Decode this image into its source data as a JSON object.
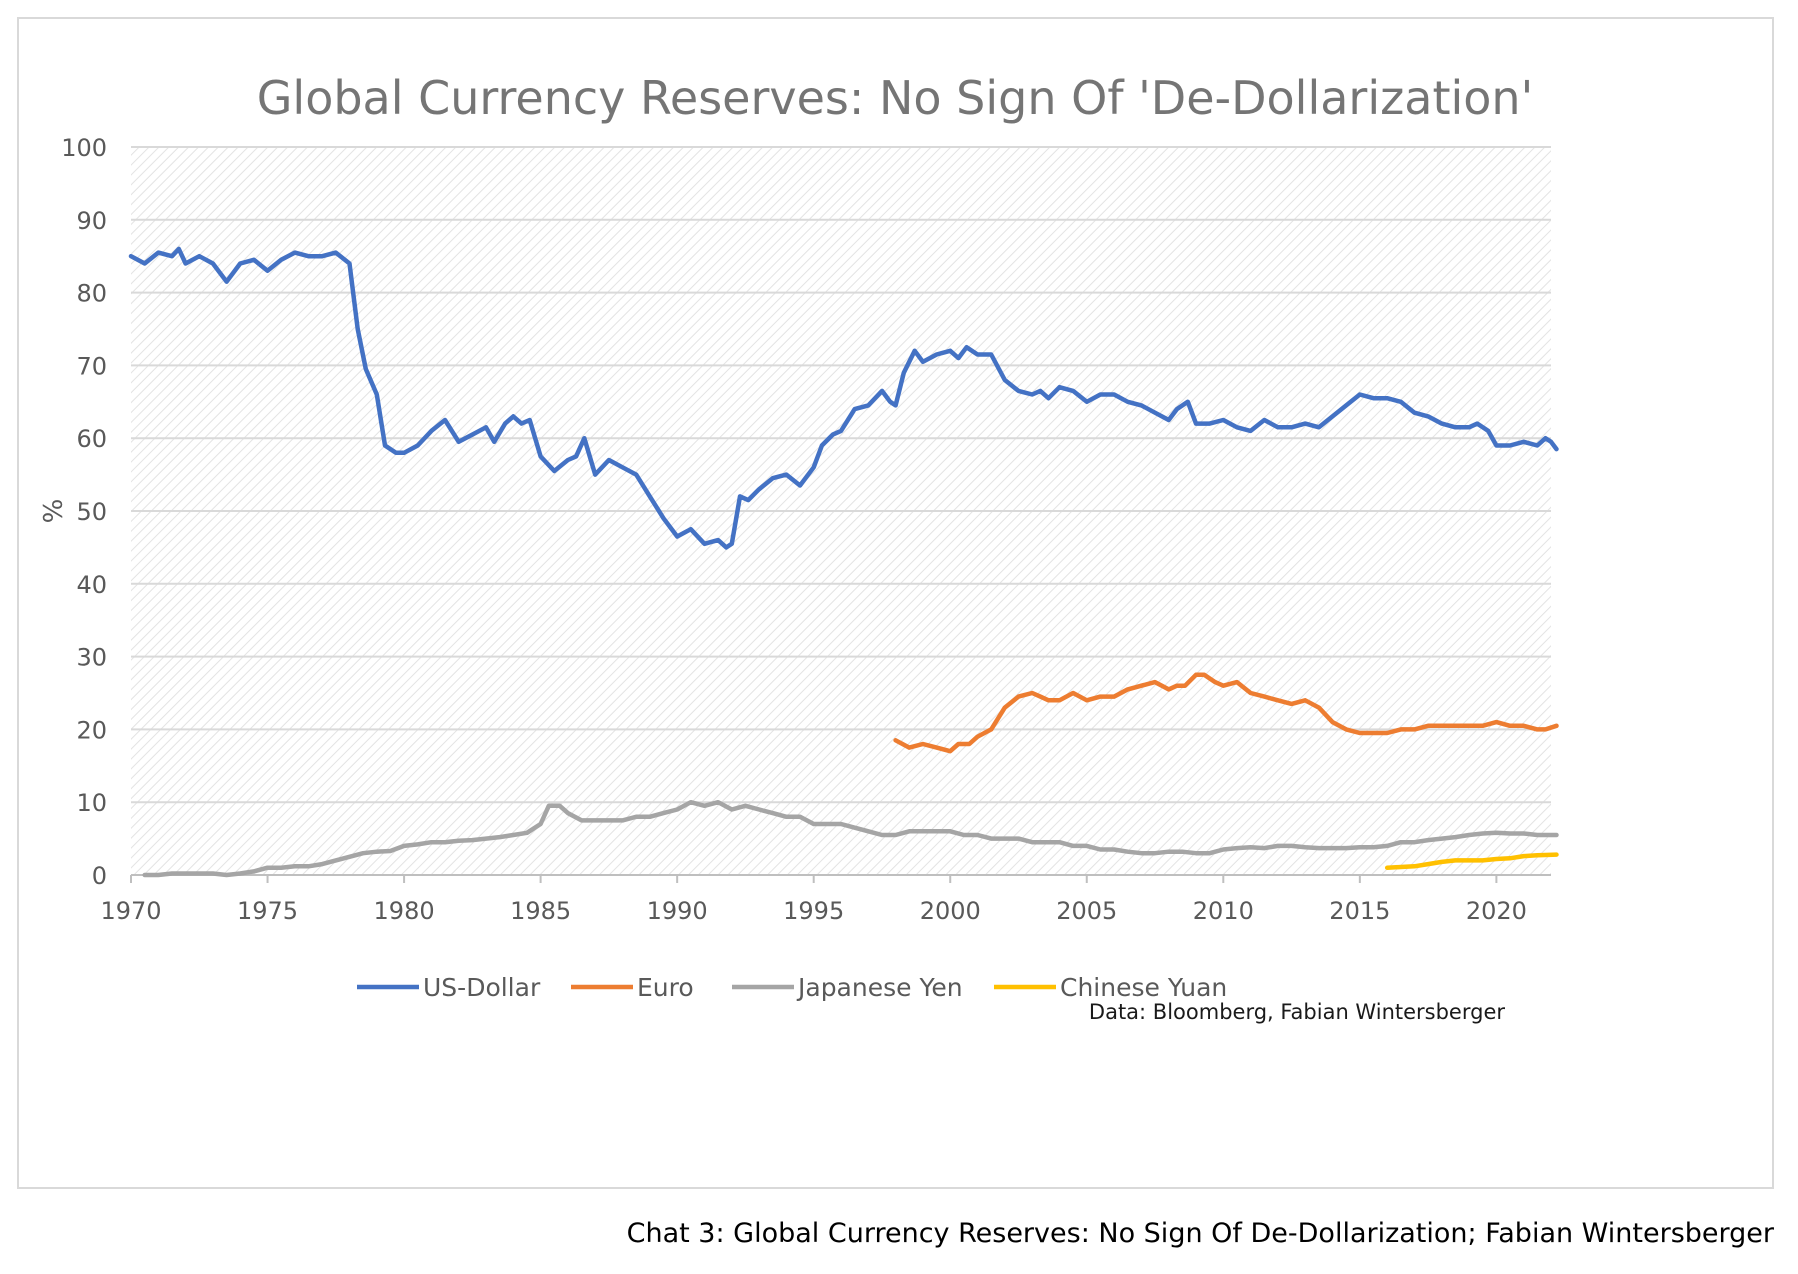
{
  "caption": "Chat 3: Global Currency Reserves: No Sign Of De-Dollarization; Fabian Wintersberger",
  "chart_data": {
    "type": "line",
    "title": "Global Currency Reserves: No Sign Of 'De-Dollarization'",
    "xlabel": "",
    "ylabel": "%",
    "xlim": [
      1970,
      2022
    ],
    "ylim": [
      0,
      100
    ],
    "x_ticks": [
      "1970",
      "1975",
      "1980",
      "1985",
      "1990",
      "1995",
      "2000",
      "2005",
      "2010",
      "2015",
      "2020"
    ],
    "y_ticks": [
      "0",
      "10",
      "20",
      "30",
      "40",
      "50",
      "60",
      "70",
      "80",
      "90",
      "100"
    ],
    "grid": true,
    "legend_position": "bottom",
    "source_note": "Data: Bloomberg, Fabian Wintersberger",
    "series": [
      {
        "name": "US-Dollar",
        "color": "#4472c4",
        "points": [
          [
            1970,
            85
          ],
          [
            1970.5,
            84
          ],
          [
            1971,
            85.5
          ],
          [
            1971.5,
            85
          ],
          [
            1971.75,
            86
          ],
          [
            1972,
            84
          ],
          [
            1972.5,
            85
          ],
          [
            1973,
            84
          ],
          [
            1973.5,
            81.5
          ],
          [
            1974,
            84
          ],
          [
            1974.5,
            84.5
          ],
          [
            1975,
            83
          ],
          [
            1975.5,
            84.5
          ],
          [
            1976,
            85.5
          ],
          [
            1976.5,
            85
          ],
          [
            1977,
            85
          ],
          [
            1977.5,
            85.5
          ],
          [
            1978,
            84
          ],
          [
            1978.3,
            75
          ],
          [
            1978.6,
            69.5
          ],
          [
            1979,
            66
          ],
          [
            1979.3,
            59
          ],
          [
            1979.7,
            58
          ],
          [
            1980,
            58
          ],
          [
            1980.5,
            59
          ],
          [
            1981,
            61
          ],
          [
            1981.5,
            62.5
          ],
          [
            1982,
            59.5
          ],
          [
            1982.5,
            60.5
          ],
          [
            1983,
            61.5
          ],
          [
            1983.3,
            59.5
          ],
          [
            1983.7,
            62
          ],
          [
            1984,
            63
          ],
          [
            1984.3,
            62
          ],
          [
            1984.6,
            62.5
          ],
          [
            1985,
            57.5
          ],
          [
            1985.5,
            55.5
          ],
          [
            1986,
            57
          ],
          [
            1986.3,
            57.5
          ],
          [
            1986.6,
            60
          ],
          [
            1987,
            55
          ],
          [
            1987.5,
            57
          ],
          [
            1988,
            56
          ],
          [
            1988.5,
            55
          ],
          [
            1989,
            52
          ],
          [
            1989.5,
            49
          ],
          [
            1990,
            46.5
          ],
          [
            1990.5,
            47.5
          ],
          [
            1991,
            45.5
          ],
          [
            1991.5,
            46
          ],
          [
            1991.8,
            45
          ],
          [
            1992,
            45.5
          ],
          [
            1992.3,
            52
          ],
          [
            1992.6,
            51.5
          ],
          [
            1993,
            53
          ],
          [
            1993.5,
            54.5
          ],
          [
            1994,
            55
          ],
          [
            1994.5,
            53.5
          ],
          [
            1995,
            56
          ],
          [
            1995.3,
            59
          ],
          [
            1995.7,
            60.5
          ],
          [
            1996,
            61
          ],
          [
            1996.5,
            64
          ],
          [
            1997,
            64.5
          ],
          [
            1997.5,
            66.5
          ],
          [
            1997.8,
            65
          ],
          [
            1998,
            64.5
          ],
          [
            1998.3,
            69
          ],
          [
            1998.7,
            72
          ],
          [
            1999,
            70.5
          ],
          [
            1999.5,
            71.5
          ],
          [
            2000,
            72
          ],
          [
            2000.3,
            71
          ],
          [
            2000.6,
            72.5
          ],
          [
            2001,
            71.5
          ],
          [
            2001.5,
            71.5
          ],
          [
            2002,
            68
          ],
          [
            2002.5,
            66.5
          ],
          [
            2003,
            66
          ],
          [
            2003.3,
            66.5
          ],
          [
            2003.6,
            65.5
          ],
          [
            2004,
            67
          ],
          [
            2004.5,
            66.5
          ],
          [
            2005,
            65
          ],
          [
            2005.5,
            66
          ],
          [
            2006,
            66
          ],
          [
            2006.5,
            65
          ],
          [
            2007,
            64.5
          ],
          [
            2007.5,
            63.5
          ],
          [
            2008,
            62.5
          ],
          [
            2008.3,
            64
          ],
          [
            2008.7,
            65
          ],
          [
            2009,
            62
          ],
          [
            2009.5,
            62
          ],
          [
            2010,
            62.5
          ],
          [
            2010.5,
            61.5
          ],
          [
            2011,
            61
          ],
          [
            2011.5,
            62.5
          ],
          [
            2012,
            61.5
          ],
          [
            2012.5,
            61.5
          ],
          [
            2013,
            62
          ],
          [
            2013.5,
            61.5
          ],
          [
            2014,
            63
          ],
          [
            2014.5,
            64.5
          ],
          [
            2015,
            66
          ],
          [
            2015.5,
            65.5
          ],
          [
            2016,
            65.5
          ],
          [
            2016.5,
            65
          ],
          [
            2017,
            63.5
          ],
          [
            2017.5,
            63
          ],
          [
            2018,
            62
          ],
          [
            2018.5,
            61.5
          ],
          [
            2019,
            61.5
          ],
          [
            2019.3,
            62
          ],
          [
            2019.7,
            61
          ],
          [
            2020,
            59
          ],
          [
            2020.5,
            59
          ],
          [
            2021,
            59.5
          ],
          [
            2021.5,
            59
          ],
          [
            2021.8,
            60
          ],
          [
            2022,
            59.5
          ],
          [
            2022.2,
            58.5
          ]
        ]
      },
      {
        "name": "Euro",
        "color": "#ed7d31",
        "points": [
          [
            1998,
            18.5
          ],
          [
            1998.5,
            17.5
          ],
          [
            1999,
            18
          ],
          [
            1999.5,
            17.5
          ],
          [
            2000,
            17
          ],
          [
            2000.3,
            18
          ],
          [
            2000.7,
            18
          ],
          [
            2001,
            19
          ],
          [
            2001.5,
            20
          ],
          [
            2002,
            23
          ],
          [
            2002.5,
            24.5
          ],
          [
            2003,
            25
          ],
          [
            2003.3,
            24.5
          ],
          [
            2003.6,
            24
          ],
          [
            2004,
            24
          ],
          [
            2004.5,
            25
          ],
          [
            2005,
            24
          ],
          [
            2005.5,
            24.5
          ],
          [
            2006,
            24.5
          ],
          [
            2006.5,
            25.5
          ],
          [
            2007,
            26
          ],
          [
            2007.5,
            26.5
          ],
          [
            2008,
            25.5
          ],
          [
            2008.3,
            26
          ],
          [
            2008.6,
            26
          ],
          [
            2009,
            27.5
          ],
          [
            2009.3,
            27.5
          ],
          [
            2009.7,
            26.5
          ],
          [
            2010,
            26
          ],
          [
            2010.5,
            26.5
          ],
          [
            2011,
            25
          ],
          [
            2011.5,
            24.5
          ],
          [
            2012,
            24
          ],
          [
            2012.5,
            23.5
          ],
          [
            2013,
            24
          ],
          [
            2013.5,
            23
          ],
          [
            2014,
            21
          ],
          [
            2014.5,
            20
          ],
          [
            2015,
            19.5
          ],
          [
            2015.5,
            19.5
          ],
          [
            2016,
            19.5
          ],
          [
            2016.5,
            20
          ],
          [
            2017,
            20
          ],
          [
            2017.5,
            20.5
          ],
          [
            2018,
            20.5
          ],
          [
            2018.5,
            20.5
          ],
          [
            2019,
            20.5
          ],
          [
            2019.5,
            20.5
          ],
          [
            2020,
            21
          ],
          [
            2020.5,
            20.5
          ],
          [
            2021,
            20.5
          ],
          [
            2021.5,
            20
          ],
          [
            2021.8,
            20
          ],
          [
            2022.2,
            20.5
          ]
        ]
      },
      {
        "name": "Japanese Yen",
        "color": "#a5a5a5",
        "points": [
          [
            1970.5,
            0
          ],
          [
            1971,
            0
          ],
          [
            1971.5,
            0.2
          ],
          [
            1972,
            0.2
          ],
          [
            1973,
            0.2
          ],
          [
            1973.5,
            0
          ],
          [
            1974,
            0.2
          ],
          [
            1974.5,
            0.5
          ],
          [
            1975,
            1
          ],
          [
            1975.5,
            1
          ],
          [
            1976,
            1.2
          ],
          [
            1976.5,
            1.2
          ],
          [
            1977,
            1.5
          ],
          [
            1977.5,
            2
          ],
          [
            1978,
            2.5
          ],
          [
            1978.5,
            3
          ],
          [
            1979,
            3.2
          ],
          [
            1979.5,
            3.3
          ],
          [
            1980,
            4
          ],
          [
            1980.5,
            4.2
          ],
          [
            1981,
            4.5
          ],
          [
            1981.5,
            4.5
          ],
          [
            1982,
            4.7
          ],
          [
            1982.5,
            4.8
          ],
          [
            1983,
            5
          ],
          [
            1983.5,
            5.2
          ],
          [
            1984,
            5.5
          ],
          [
            1984.5,
            5.8
          ],
          [
            1985,
            7
          ],
          [
            1985.3,
            9.5
          ],
          [
            1985.7,
            9.5
          ],
          [
            1986,
            8.5
          ],
          [
            1986.5,
            7.5
          ],
          [
            1987,
            7.5
          ],
          [
            1987.5,
            7.5
          ],
          [
            1988,
            7.5
          ],
          [
            1988.5,
            8
          ],
          [
            1989,
            8
          ],
          [
            1989.5,
            8.5
          ],
          [
            1990,
            9
          ],
          [
            1990.5,
            10
          ],
          [
            1991,
            9.5
          ],
          [
            1991.5,
            10
          ],
          [
            1992,
            9
          ],
          [
            1992.5,
            9.5
          ],
          [
            1993,
            9
          ],
          [
            1993.5,
            8.5
          ],
          [
            1994,
            8
          ],
          [
            1994.5,
            8
          ],
          [
            1995,
            7
          ],
          [
            1995.5,
            7
          ],
          [
            1996,
            7
          ],
          [
            1996.5,
            6.5
          ],
          [
            1997,
            6
          ],
          [
            1997.5,
            5.5
          ],
          [
            1998,
            5.5
          ],
          [
            1998.5,
            6
          ],
          [
            1999,
            6
          ],
          [
            1999.5,
            6
          ],
          [
            2000,
            6
          ],
          [
            2000.5,
            5.5
          ],
          [
            2001,
            5.5
          ],
          [
            2001.5,
            5
          ],
          [
            2002,
            5
          ],
          [
            2002.5,
            5
          ],
          [
            2003,
            4.5
          ],
          [
            2003.5,
            4.5
          ],
          [
            2004,
            4.5
          ],
          [
            2004.5,
            4
          ],
          [
            2005,
            4
          ],
          [
            2005.5,
            3.5
          ],
          [
            2006,
            3.5
          ],
          [
            2006.5,
            3.2
          ],
          [
            2007,
            3
          ],
          [
            2007.5,
            3
          ],
          [
            2008,
            3.2
          ],
          [
            2008.5,
            3.2
          ],
          [
            2009,
            3
          ],
          [
            2009.5,
            3
          ],
          [
            2010,
            3.5
          ],
          [
            2010.5,
            3.7
          ],
          [
            2011,
            3.8
          ],
          [
            2011.5,
            3.7
          ],
          [
            2012,
            4
          ],
          [
            2012.5,
            4
          ],
          [
            2013,
            3.8
          ],
          [
            2013.5,
            3.7
          ],
          [
            2014,
            3.7
          ],
          [
            2014.5,
            3.7
          ],
          [
            2015,
            3.8
          ],
          [
            2015.5,
            3.8
          ],
          [
            2016,
            4
          ],
          [
            2016.5,
            4.5
          ],
          [
            2017,
            4.5
          ],
          [
            2017.5,
            4.8
          ],
          [
            2018,
            5
          ],
          [
            2018.5,
            5.2
          ],
          [
            2019,
            5.5
          ],
          [
            2019.5,
            5.7
          ],
          [
            2020,
            5.8
          ],
          [
            2020.5,
            5.7
          ],
          [
            2021,
            5.7
          ],
          [
            2021.5,
            5.5
          ],
          [
            2022.2,
            5.5
          ]
        ]
      },
      {
        "name": "Chinese Yuan",
        "color": "#ffc000",
        "points": [
          [
            2016,
            1
          ],
          [
            2016.5,
            1.1
          ],
          [
            2017,
            1.2
          ],
          [
            2017.5,
            1.5
          ],
          [
            2018,
            1.8
          ],
          [
            2018.5,
            2
          ],
          [
            2019,
            2
          ],
          [
            2019.5,
            2
          ],
          [
            2020,
            2.2
          ],
          [
            2020.5,
            2.3
          ],
          [
            2021,
            2.6
          ],
          [
            2021.5,
            2.7
          ],
          [
            2022.2,
            2.8
          ]
        ]
      }
    ]
  }
}
